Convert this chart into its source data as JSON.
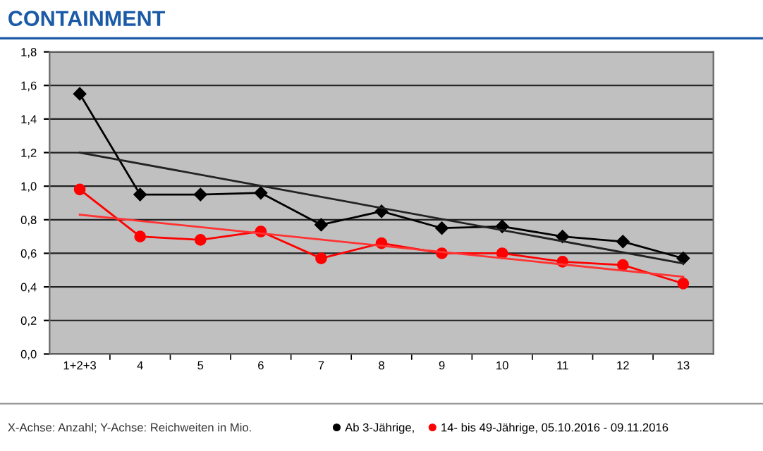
{
  "chart_data": {
    "type": "line",
    "title": "CONTAINMENT",
    "categories": [
      "1+2+3",
      "4",
      "5",
      "6",
      "7",
      "8",
      "9",
      "10",
      "11",
      "12",
      "13"
    ],
    "series": [
      {
        "name": "Ab 3-Jährige,",
        "color": "#000000",
        "marker": "diamond",
        "values": [
          1.55,
          0.95,
          0.95,
          0.96,
          0.77,
          0.85,
          0.75,
          0.76,
          0.7,
          0.67,
          0.57
        ]
      },
      {
        "name": "14- bis 49-Jährige, 05.10.2016 - 09.11.2016",
        "color": "#ff0000",
        "marker": "circle",
        "values": [
          0.98,
          0.7,
          0.68,
          0.73,
          0.57,
          0.66,
          0.6,
          0.6,
          0.55,
          0.53,
          0.42
        ]
      },
      {
        "color": "#222222",
        "marker": "none",
        "x": [
          "1+2+3",
          "13"
        ],
        "values": [
          1.2,
          0.54
        ]
      },
      {
        "color": "#ff3333",
        "marker": "none",
        "x": [
          "1+2+3",
          "13"
        ],
        "values": [
          0.83,
          0.46
        ]
      }
    ],
    "ylim": [
      0,
      1.8
    ],
    "yticks": [
      {
        "value": 0,
        "label": "0,0"
      },
      {
        "value": 0.2,
        "label": "0,2"
      },
      {
        "value": 0.4,
        "label": "0,4"
      },
      {
        "value": 0.6,
        "label": "0,6"
      },
      {
        "value": 0.8,
        "label": "0,8"
      },
      {
        "value": 1.0,
        "label": "1,0"
      },
      {
        "value": 1.2,
        "label": "1,2"
      },
      {
        "value": 1.4,
        "label": "1,4"
      },
      {
        "value": 1.6,
        "label": "1,6"
      },
      {
        "value": 1.8,
        "label": "1,8"
      }
    ],
    "grid": "y",
    "legend": "bottom",
    "line_style": "solid",
    "annotations": [
      "X-Achse: Anzahl; Y-Achse: Reichweiten in Mio."
    ]
  }
}
